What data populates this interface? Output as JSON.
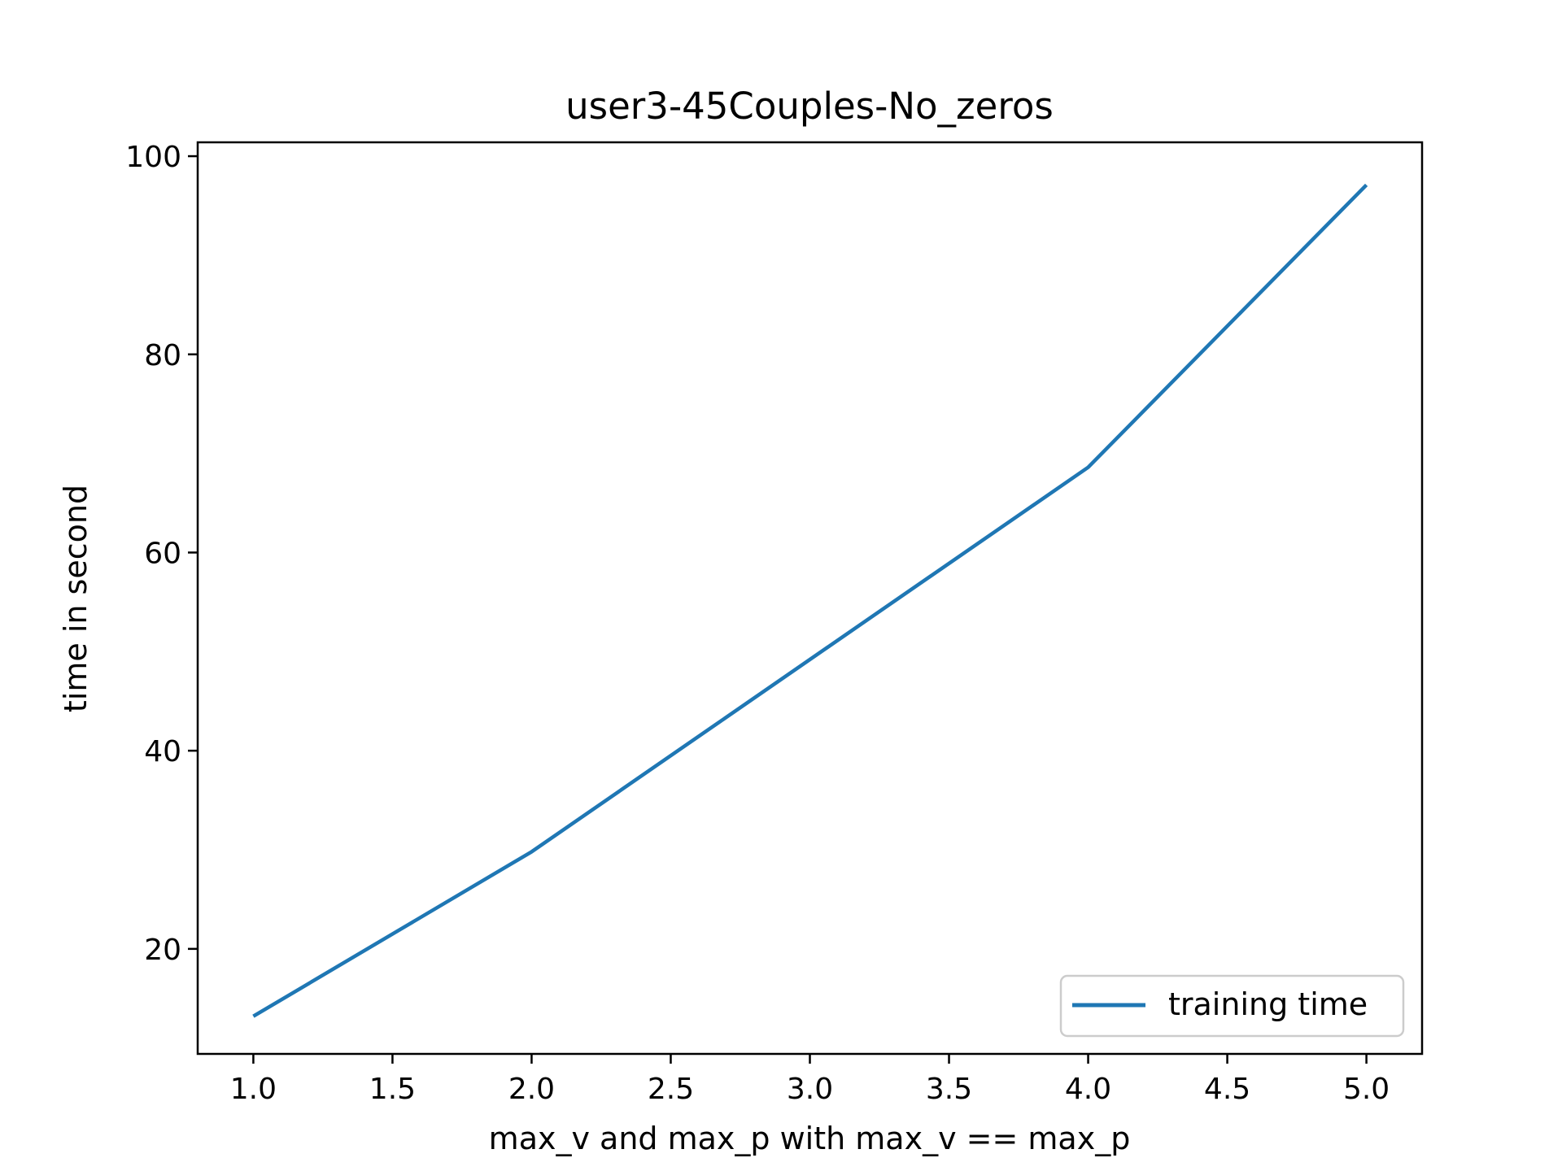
{
  "chart_data": {
    "type": "line",
    "title": "user3-45Couples-No_zeros",
    "xlabel": "max_v and max_p with max_v == max_p",
    "ylabel": "time in second",
    "xlim": [
      0.8,
      5.2
    ],
    "ylim": [
      9.4,
      101.4
    ],
    "xticks": [
      "1.0",
      "1.5",
      "2.0",
      "2.5",
      "3.0",
      "3.5",
      "4.0",
      "4.5",
      "5.0"
    ],
    "yticks": [
      "20",
      "40",
      "60",
      "80",
      "100"
    ],
    "grid": false,
    "legend_position": "lower-right",
    "series": [
      {
        "name": "training time",
        "color": "#1f77b4",
        "x": [
          1,
          2,
          3,
          4,
          5
        ],
        "y": [
          13.2,
          29.8,
          49.2,
          68.6,
          97.1
        ]
      }
    ]
  }
}
